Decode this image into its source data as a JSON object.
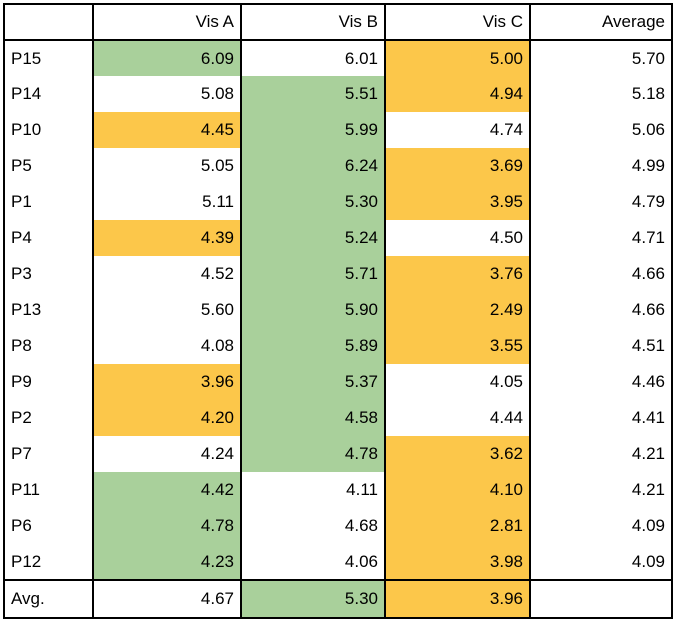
{
  "colors": {
    "green": "#a9d09b",
    "orange": "#fcc74a",
    "white": "#ffffff"
  },
  "headers": [
    "",
    "Vis A",
    "Vis B",
    "Vis C",
    "Average"
  ],
  "rows": [
    {
      "p": "P15",
      "a": "6.09",
      "b": "6.01",
      "c": "5.00",
      "avg": "5.70",
      "ca": "green",
      "cb": "white",
      "cc": "orange"
    },
    {
      "p": "P14",
      "a": "5.08",
      "b": "5.51",
      "c": "4.94",
      "avg": "5.18",
      "ca": "white",
      "cb": "green",
      "cc": "orange"
    },
    {
      "p": "P10",
      "a": "4.45",
      "b": "5.99",
      "c": "4.74",
      "avg": "5.06",
      "ca": "orange",
      "cb": "green",
      "cc": "white"
    },
    {
      "p": "P5",
      "a": "5.05",
      "b": "6.24",
      "c": "3.69",
      "avg": "4.99",
      "ca": "white",
      "cb": "green",
      "cc": "orange"
    },
    {
      "p": "P1",
      "a": "5.11",
      "b": "5.30",
      "c": "3.95",
      "avg": "4.79",
      "ca": "white",
      "cb": "green",
      "cc": "orange"
    },
    {
      "p": "P4",
      "a": "4.39",
      "b": "5.24",
      "c": "4.50",
      "avg": "4.71",
      "ca": "orange",
      "cb": "green",
      "cc": "white"
    },
    {
      "p": "P3",
      "a": "4.52",
      "b": "5.71",
      "c": "3.76",
      "avg": "4.66",
      "ca": "white",
      "cb": "green",
      "cc": "orange"
    },
    {
      "p": "P13",
      "a": "5.60",
      "b": "5.90",
      "c": "2.49",
      "avg": "4.66",
      "ca": "white",
      "cb": "green",
      "cc": "orange"
    },
    {
      "p": "P8",
      "a": "4.08",
      "b": "5.89",
      "c": "3.55",
      "avg": "4.51",
      "ca": "white",
      "cb": "green",
      "cc": "orange"
    },
    {
      "p": "P9",
      "a": "3.96",
      "b": "5.37",
      "c": "4.05",
      "avg": "4.46",
      "ca": "orange",
      "cb": "green",
      "cc": "white"
    },
    {
      "p": "P2",
      "a": "4.20",
      "b": "4.58",
      "c": "4.44",
      "avg": "4.41",
      "ca": "orange",
      "cb": "green",
      "cc": "white"
    },
    {
      "p": "P7",
      "a": "4.24",
      "b": "4.78",
      "c": "3.62",
      "avg": "4.21",
      "ca": "white",
      "cb": "green",
      "cc": "orange"
    },
    {
      "p": "P11",
      "a": "4.42",
      "b": "4.11",
      "c": "4.10",
      "avg": "4.21",
      "ca": "green",
      "cb": "white",
      "cc": "orange"
    },
    {
      "p": "P6",
      "a": "4.78",
      "b": "4.68",
      "c": "2.81",
      "avg": "4.09",
      "ca": "green",
      "cb": "white",
      "cc": "orange"
    },
    {
      "p": "P12",
      "a": "4.23",
      "b": "4.06",
      "c": "3.98",
      "avg": "4.09",
      "ca": "green",
      "cb": "white",
      "cc": "orange"
    }
  ],
  "footer": {
    "p": "Avg.",
    "a": "4.67",
    "b": "5.30",
    "c": "3.96",
    "avg": "",
    "ca": "white",
    "cb": "green",
    "cc": "orange"
  }
}
